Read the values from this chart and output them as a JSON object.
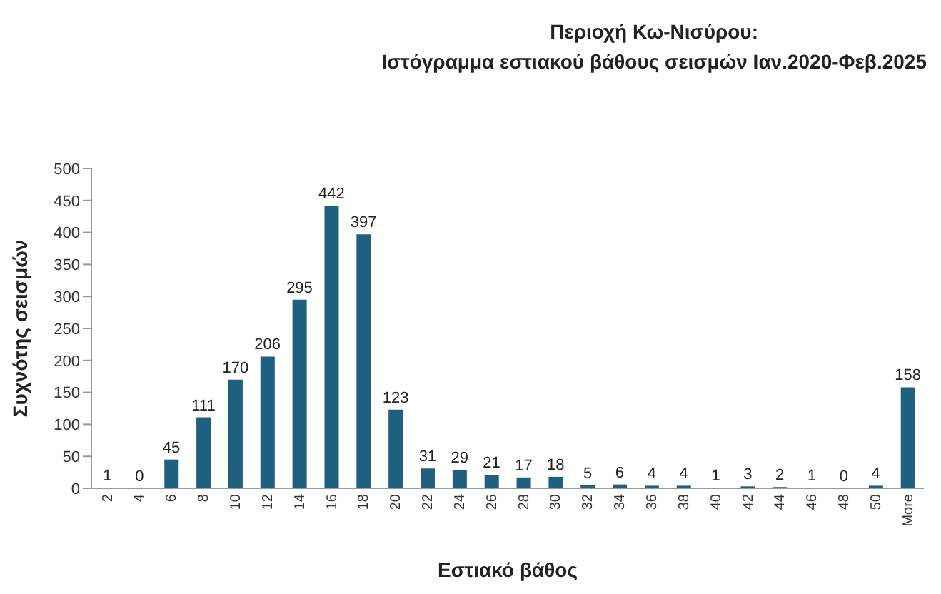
{
  "chart_data": {
    "type": "bar",
    "title": "Περιοχή Κω-Νισύρου:\nΙστόγραμμα εστιακού βάθους σεισμών Ιαν.2020-Φεβ.2025",
    "xlabel": "Εστιακό βάθος",
    "ylabel": "Συχνότης σεισμών",
    "categories": [
      "2",
      "4",
      "6",
      "8",
      "10",
      "12",
      "14",
      "16",
      "18",
      "20",
      "22",
      "24",
      "26",
      "28",
      "30",
      "32",
      "34",
      "36",
      "38",
      "40",
      "42",
      "44",
      "46",
      "48",
      "50",
      "More"
    ],
    "values": [
      1,
      0,
      45,
      111,
      170,
      206,
      295,
      442,
      397,
      123,
      31,
      29,
      21,
      17,
      18,
      5,
      6,
      4,
      4,
      1,
      3,
      2,
      1,
      0,
      4,
      158
    ],
    "color": "#1f5f7f",
    "ylim": [
      0,
      500
    ],
    "yticks": [
      0,
      50,
      100,
      150,
      200,
      250,
      300,
      350,
      400,
      450,
      500
    ],
    "data_labels": true,
    "grid": false,
    "legend": false
  }
}
